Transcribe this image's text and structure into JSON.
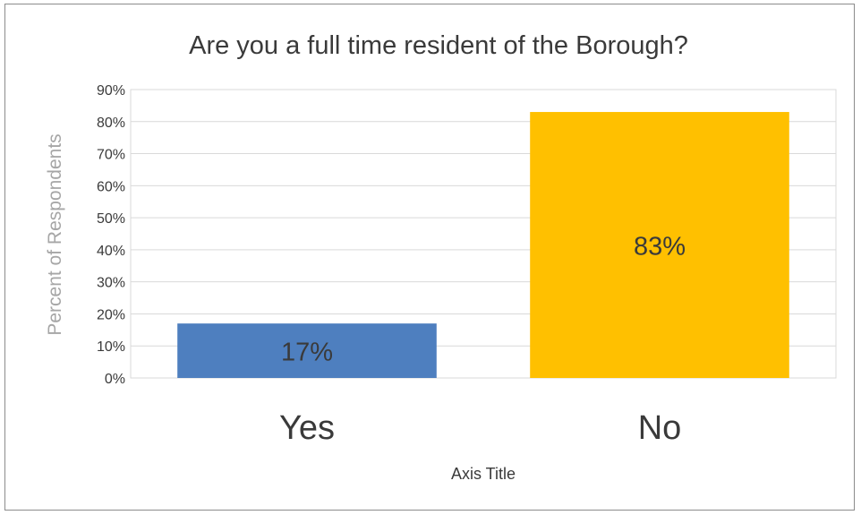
{
  "chart_data": {
    "type": "bar",
    "title": "Are you a full time resident of the Borough?",
    "categories": [
      "Yes",
      "No"
    ],
    "values": [
      17,
      83
    ],
    "data_labels": [
      "17%",
      "83%"
    ],
    "bar_colors": [
      "#4e7fbf",
      "#ffc000"
    ],
    "ylabel": "Percent of Respondents",
    "xlabel": "Axis Title",
    "ylim": [
      0,
      90
    ],
    "y_ticks": [
      0,
      10,
      20,
      30,
      40,
      50,
      60,
      70,
      80,
      90
    ],
    "y_tick_labels": [
      "0%",
      "10%",
      "20%",
      "30%",
      "40%",
      "50%",
      "60%",
      "70%",
      "80%",
      "90%"
    ],
    "grid": true,
    "legend": "none"
  }
}
